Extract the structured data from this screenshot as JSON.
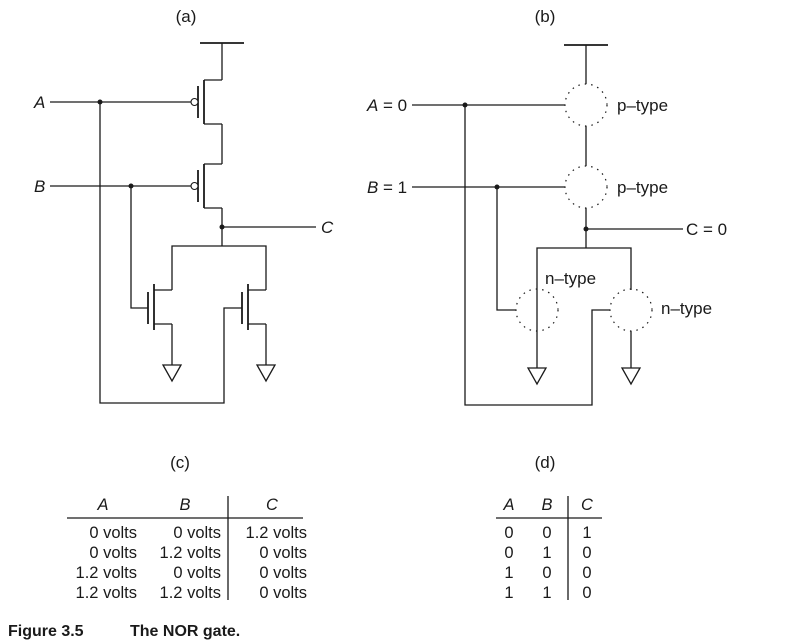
{
  "panels": {
    "a": {
      "label": "(a)",
      "input_a": "A",
      "input_b": "B",
      "output": "C"
    },
    "b": {
      "label": "(b)",
      "input_a": "A",
      "input_a_value": "= 0",
      "input_b": "B",
      "input_b_value": "= 1",
      "output": "C = 0",
      "p1_type": "p–type",
      "p2_type": "p–type",
      "n1_type": "n–type",
      "n2_type": "n–type"
    },
    "c": {
      "label": "(c)",
      "headers": [
        "A",
        "B",
        "C"
      ],
      "rows": [
        [
          "0 volts",
          "0 volts",
          "1.2 volts"
        ],
        [
          "0 volts",
          "1.2 volts",
          "0 volts"
        ],
        [
          "1.2 volts",
          "0 volts",
          "0 volts"
        ],
        [
          "1.2 volts",
          "1.2 volts",
          "0 volts"
        ]
      ]
    },
    "d": {
      "label": "(d)",
      "headers": [
        "A",
        "B",
        "C"
      ],
      "rows": [
        [
          "0",
          "0",
          "1"
        ],
        [
          "0",
          "1",
          "0"
        ],
        [
          "1",
          "0",
          "0"
        ],
        [
          "1",
          "1",
          "0"
        ]
      ]
    }
  },
  "caption": {
    "number": "Figure 3.5",
    "title": "The NOR gate."
  }
}
